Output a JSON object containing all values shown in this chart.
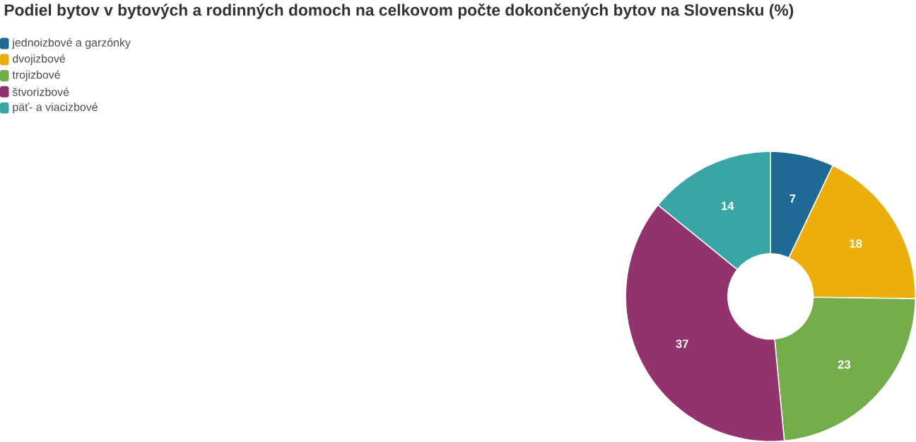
{
  "chart_data": {
    "type": "donut",
    "title": "Podiel bytov v bytových a rodinných domoch na celkovom počte dokončených bytov na Slovensku (%)",
    "categories": [
      "jednoizbové a garzónky",
      "dvojizbové",
      "trojizbové",
      "štvorizbové",
      "päť- a viacizbové"
    ],
    "values": [
      7,
      18,
      23,
      37,
      14
    ],
    "colors": [
      "#1f6a94",
      "#ebae0b",
      "#73ad4a",
      "#93336d",
      "#39a5a5"
    ],
    "legend": "top left",
    "data_labels": true
  }
}
